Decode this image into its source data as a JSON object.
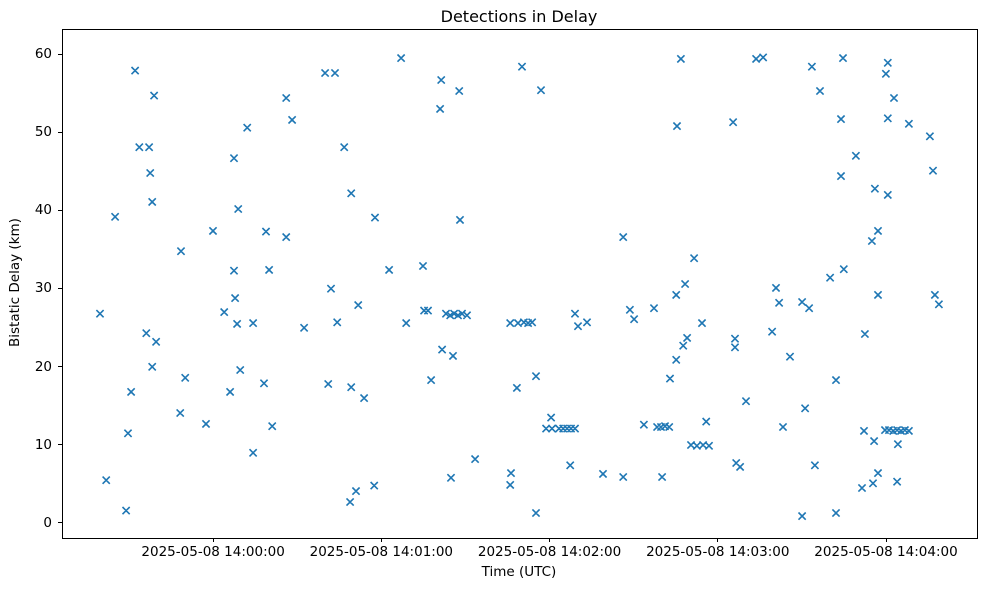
{
  "figure": {
    "title": "Detections in Delay"
  },
  "chart_data": {
    "type": "scatter",
    "title": "Detections in Delay",
    "xlabel": "Time (UTC)",
    "ylabel": "Bistatic Delay (km)",
    "x_unit": "seconds after 2025-05-08 14:00:00 UTC",
    "xlim_seconds": [
      -53.9,
      272.1
    ],
    "ylim": [
      -1.8,
      63.2
    ],
    "grid": false,
    "legend": null,
    "marker": "x",
    "marker_color": "#1f77b4",
    "x_ticks": [
      {
        "t": 0,
        "label": "2025-05-08 14:00:00"
      },
      {
        "t": 60,
        "label": "2025-05-08 14:01:00"
      },
      {
        "t": 120,
        "label": "2025-05-08 14:02:00"
      },
      {
        "t": 180,
        "label": "2025-05-08 14:03:00"
      },
      {
        "t": 240,
        "label": "2025-05-08 14:04:00"
      }
    ],
    "y_ticks": [
      0,
      10,
      20,
      30,
      40,
      50,
      60
    ],
    "points": [
      [
        -28.2,
        58.0
      ],
      [
        -21.4,
        54.8
      ],
      [
        25.7,
        54.5
      ],
      [
        27.8,
        51.7
      ],
      [
        11.8,
        50.7
      ],
      [
        -26.7,
        48.2
      ],
      [
        -23.2,
        48.2
      ],
      [
        7.1,
        46.8
      ],
      [
        -22.8,
        44.9
      ],
      [
        -22.1,
        41.2
      ],
      [
        -35.3,
        39.3
      ],
      [
        8.6,
        40.3
      ],
      [
        -0.4,
        37.5
      ],
      [
        18.5,
        37.4
      ],
      [
        25.7,
        36.7
      ],
      [
        -11.8,
        34.9
      ],
      [
        7.1,
        32.4
      ],
      [
        19.6,
        32.5
      ],
      [
        66.7,
        59.6
      ],
      [
        39.6,
        57.7
      ],
      [
        43.1,
        57.7
      ],
      [
        109.8,
        58.5
      ],
      [
        81.0,
        56.8
      ],
      [
        87.4,
        55.4
      ],
      [
        80.6,
        53.1
      ],
      [
        46.4,
        48.2
      ],
      [
        48.9,
        42.3
      ],
      [
        57.4,
        39.2
      ],
      [
        87.7,
        38.9
      ],
      [
        62.4,
        32.5
      ],
      [
        74.5,
        33.0
      ],
      [
        41.7,
        30.1
      ],
      [
        166.5,
        59.5
      ],
      [
        116.6,
        55.5
      ],
      [
        165.1,
        50.9
      ],
      [
        185.1,
        51.4
      ],
      [
        145.9,
        36.7
      ],
      [
        171.2,
        34.0
      ],
      [
        168.0,
        30.7
      ],
      [
        164.8,
        29.3
      ],
      [
        193.3,
        59.5
      ],
      [
        195.8,
        59.7
      ],
      [
        224.3,
        59.6
      ],
      [
        213.2,
        58.5
      ],
      [
        240.3,
        59.0
      ],
      [
        239.6,
        57.6
      ],
      [
        216.1,
        55.4
      ],
      [
        242.5,
        54.5
      ],
      [
        223.6,
        51.8
      ],
      [
        240.3,
        51.9
      ],
      [
        247.8,
        51.2
      ],
      [
        255.3,
        49.6
      ],
      [
        228.9,
        47.1
      ],
      [
        256.4,
        45.2
      ],
      [
        223.6,
        44.5
      ],
      [
        235.7,
        42.9
      ],
      [
        240.3,
        42.1
      ],
      [
        236.8,
        37.5
      ],
      [
        234.6,
        36.2
      ],
      [
        224.6,
        32.6
      ],
      [
        219.7,
        31.5
      ],
      [
        200.4,
        30.2
      ],
      [
        7.5,
        28.9
      ],
      [
        -40.7,
        26.9
      ],
      [
        3.6,
        27.1
      ],
      [
        8.2,
        25.6
      ],
      [
        13.9,
        25.7
      ],
      [
        -24.2,
        24.4
      ],
      [
        -20.7,
        23.3
      ],
      [
        -22.1,
        20.1
      ],
      [
        -10.3,
        18.7
      ],
      [
        9.3,
        19.7
      ],
      [
        17.8,
        18.0
      ],
      [
        -29.6,
        16.9
      ],
      [
        5.7,
        16.9
      ],
      [
        -12.1,
        14.2
      ],
      [
        -2.9,
        12.8
      ],
      [
        20.7,
        12.5
      ],
      [
        -30.7,
        11.6
      ],
      [
        13.9,
        9.1
      ],
      [
        -38.5,
        5.6
      ],
      [
        -31.4,
        1.7
      ],
      [
        51.4,
        28.0
      ],
      [
        32.1,
        25.1
      ],
      [
        43.9,
        25.8
      ],
      [
        68.5,
        25.7
      ],
      [
        74.9,
        27.3
      ],
      [
        76.3,
        27.3
      ],
      [
        82.7,
        26.9
      ],
      [
        84.2,
        26.7
      ],
      [
        85.6,
        26.9
      ],
      [
        87.0,
        26.7
      ],
      [
        88.4,
        26.9
      ],
      [
        90.2,
        26.7
      ],
      [
        81.3,
        22.3
      ],
      [
        85.2,
        21.5
      ],
      [
        77.4,
        18.4
      ],
      [
        108.0,
        17.4
      ],
      [
        40.7,
        17.9
      ],
      [
        48.9,
        17.5
      ],
      [
        53.5,
        16.1
      ],
      [
        93.1,
        8.3
      ],
      [
        84.5,
        5.9
      ],
      [
        105.9,
        6.5
      ],
      [
        105.6,
        5.0
      ],
      [
        57.1,
        4.9
      ],
      [
        50.6,
        4.2
      ],
      [
        48.5,
        2.8
      ],
      [
        105.6,
        25.7
      ],
      [
        108.4,
        25.7
      ],
      [
        110.5,
        25.8
      ],
      [
        112.0,
        25.7
      ],
      [
        113.4,
        25.8
      ],
      [
        128.7,
        26.9
      ],
      [
        129.8,
        25.3
      ],
      [
        133.0,
        25.8
      ],
      [
        148.3,
        27.4
      ],
      [
        149.8,
        26.2
      ],
      [
        156.9,
        27.6
      ],
      [
        174.0,
        25.7
      ],
      [
        168.7,
        23.8
      ],
      [
        167.3,
        22.8
      ],
      [
        185.8,
        23.7
      ],
      [
        185.8,
        22.6
      ],
      [
        164.8,
        21.0
      ],
      [
        162.6,
        18.6
      ],
      [
        114.8,
        18.9
      ],
      [
        189.7,
        15.7
      ],
      [
        120.2,
        13.6
      ],
      [
        118.4,
        12.2
      ],
      [
        120.5,
        12.2
      ],
      [
        123.0,
        12.2
      ],
      [
        124.5,
        12.2
      ],
      [
        125.9,
        12.2
      ],
      [
        127.3,
        12.2
      ],
      [
        128.7,
        12.2
      ],
      [
        153.3,
        12.7
      ],
      [
        158.0,
        12.4
      ],
      [
        159.4,
        12.4
      ],
      [
        160.8,
        12.5
      ],
      [
        162.3,
        12.4
      ],
      [
        175.5,
        13.1
      ],
      [
        170.1,
        10.1
      ],
      [
        172.2,
        10.0
      ],
      [
        174.4,
        10.1
      ],
      [
        176.5,
        10.0
      ],
      [
        186.2,
        7.8
      ],
      [
        187.6,
        7.3
      ],
      [
        127.0,
        7.5
      ],
      [
        138.7,
        6.4
      ],
      [
        145.9,
        6.0
      ],
      [
        159.8,
        6.0
      ],
      [
        114.8,
        1.4
      ],
      [
        201.5,
        28.3
      ],
      [
        209.7,
        28.4
      ],
      [
        212.2,
        27.6
      ],
      [
        236.8,
        29.3
      ],
      [
        257.1,
        29.3
      ],
      [
        258.5,
        28.1
      ],
      [
        199.0,
        24.6
      ],
      [
        232.1,
        24.3
      ],
      [
        205.4,
        21.4
      ],
      [
        221.8,
        18.4
      ],
      [
        210.8,
        14.8
      ],
      [
        202.9,
        12.4
      ],
      [
        231.8,
        11.9
      ],
      [
        235.4,
        10.6
      ],
      [
        239.3,
        12.0
      ],
      [
        240.7,
        12.0
      ],
      [
        242.2,
        11.9
      ],
      [
        243.6,
        12.0
      ],
      [
        245.0,
        11.9
      ],
      [
        246.4,
        12.0
      ],
      [
        247.8,
        11.9
      ],
      [
        243.9,
        10.2
      ],
      [
        214.3,
        7.5
      ],
      [
        236.8,
        6.5
      ],
      [
        235.0,
        5.2
      ],
      [
        231.1,
        4.6
      ],
      [
        243.6,
        5.4
      ],
      [
        209.7,
        1.0
      ],
      [
        221.8,
        1.4
      ]
    ]
  }
}
